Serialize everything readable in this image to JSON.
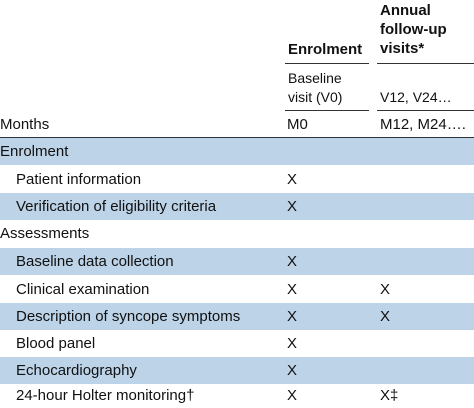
{
  "header": {
    "enrolment": "Enrolment",
    "annual": [
      "Annual",
      "follow-up",
      "visits*"
    ]
  },
  "subheader": {
    "baseline": [
      "Baseline",
      "visit (V0)"
    ],
    "followup": "V12, V24…"
  },
  "months_row": {
    "label": "Months",
    "enrolment": "M0",
    "followup": "M12, M24…."
  },
  "sections": [
    {
      "title": "Enrolment",
      "rows": [
        {
          "label": "Patient information",
          "enrolment": "X",
          "followup": ""
        },
        {
          "label": "Verification of eligibility criteria",
          "enrolment": "X",
          "followup": ""
        }
      ]
    },
    {
      "title": "Assessments",
      "rows": [
        {
          "label": "Baseline data collection",
          "enrolment": "X",
          "followup": ""
        },
        {
          "label": "Clinical examination",
          "enrolment": "X",
          "followup": "X"
        },
        {
          "label": "Description of syncope symptoms",
          "enrolment": "X",
          "followup": "X"
        },
        {
          "label": "Blood panel",
          "enrolment": "X",
          "followup": ""
        },
        {
          "label": "Echocardiography",
          "enrolment": "X",
          "followup": ""
        },
        {
          "label": "24-hour Holter monitoring†",
          "enrolment": "X",
          "followup": "X‡"
        }
      ]
    }
  ],
  "colors": {
    "row_shading": "#bdd3e8",
    "text": "#111111"
  }
}
